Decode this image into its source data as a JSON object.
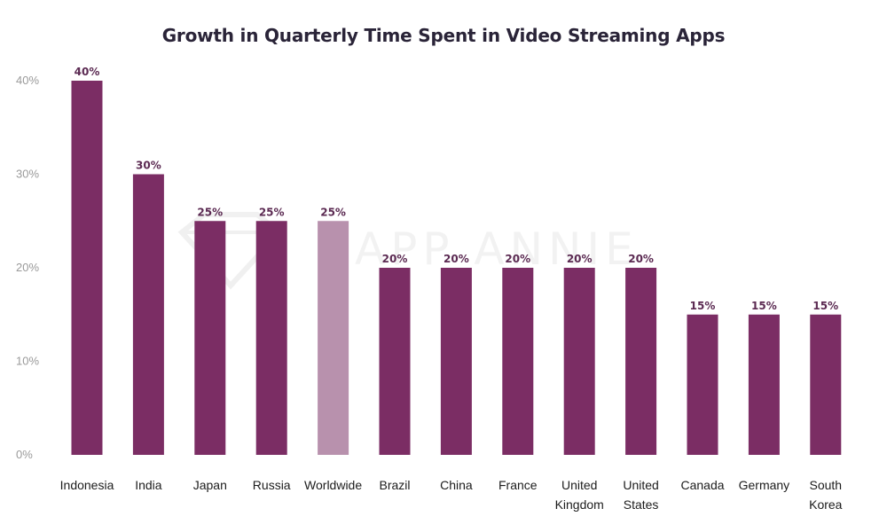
{
  "chart_data": {
    "type": "bar",
    "title": "Growth in Quarterly Time Spent in Video Streaming Apps",
    "categories": [
      [
        "Indonesia"
      ],
      [
        "India"
      ],
      [
        "Japan"
      ],
      [
        "Russia"
      ],
      [
        "Worldwide"
      ],
      [
        "Brazil"
      ],
      [
        "China"
      ],
      [
        "France"
      ],
      [
        "United",
        "Kingdom"
      ],
      [
        "United",
        "States"
      ],
      [
        "Canada"
      ],
      [
        "Germany"
      ],
      [
        "South",
        "Korea"
      ]
    ],
    "values": [
      40,
      30,
      25,
      25,
      25,
      20,
      20,
      20,
      20,
      20,
      15,
      15,
      15
    ],
    "data_labels": [
      "40%",
      "30%",
      "25%",
      "25%",
      "25%",
      "20%",
      "20%",
      "20%",
      "20%",
      "20%",
      "15%",
      "15%",
      "15%"
    ],
    "highlight_category": "Worldwide",
    "ylim": [
      0,
      40
    ],
    "yticks": [
      0,
      10,
      20,
      30,
      40
    ],
    "ytick_labels": [
      "0%",
      "10%",
      "20%",
      "30%",
      "40%"
    ],
    "grid": false,
    "xlabel": "",
    "ylabel": "",
    "colors": {
      "bar": "#7b2d64",
      "highlight": "#b891ad",
      "label": "#5b2a52"
    },
    "watermark": "APP ANNIE"
  }
}
